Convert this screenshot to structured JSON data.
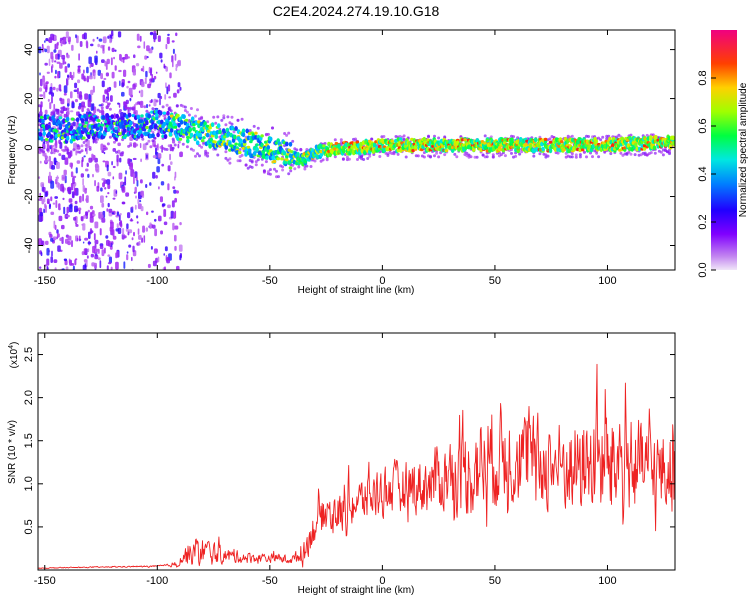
{
  "figure": {
    "title": "C2E4.2024.274.19.10.G18"
  },
  "chart_data": [
    {
      "type": "heatmap",
      "title": "C2E4.2024.274.19.10.G18",
      "xlabel": "Height of straight line (km)",
      "ylabel": "Frequency (Hz)",
      "xlim": [
        -153,
        130
      ],
      "ylim": [
        -50,
        48
      ],
      "xticks": [
        -150,
        -100,
        -50,
        0,
        50,
        100
      ],
      "yticks": [
        -40,
        -20,
        0,
        20,
        40
      ],
      "colorbar": {
        "label": "Normalized spectral amplitude",
        "range": [
          0,
          1
        ],
        "ticks": [
          0.0,
          0.2,
          0.4,
          0.6,
          0.8
        ],
        "tick_labels": [
          "0.0",
          "0.2",
          "0.4",
          "0.6",
          "0.8"
        ],
        "colormap": [
          "#e8d8f4",
          "#a020f0",
          "#4000ff",
          "#0060ff",
          "#00e0ff",
          "#00ff40",
          "#c0ff00",
          "#ffc000",
          "#ff3000",
          "#e00060"
        ]
      },
      "ridge": {
        "x": [
          -153,
          -140,
          -130,
          -120,
          -110,
          -100,
          -90,
          -80,
          -70,
          -60,
          -50,
          -42,
          -35,
          -30,
          -20,
          -10,
          0,
          20,
          40,
          60,
          80,
          100,
          120,
          130
        ],
        "frequency": [
          8,
          7,
          9,
          8,
          9,
          10,
          8,
          6,
          4,
          2,
          -1,
          -3,
          -5,
          -2,
          0,
          0,
          1,
          1,
          1,
          1,
          1,
          1,
          2,
          2
        ]
      },
      "noise_region": [
        -153,
        -95
      ],
      "grid": false
    },
    {
      "type": "line",
      "xlabel": "Height of straight line (km)",
      "ylabel": "SNR (10 * v/v)",
      "scale_label": "(x10",
      "scale_exponent": "4",
      "xlim": [
        -153,
        130
      ],
      "ylim": [
        0,
        2.75
      ],
      "xticks": [
        -150,
        -100,
        -50,
        0,
        50,
        100
      ],
      "yticks": [
        0.5,
        1.0,
        1.5,
        2.0,
        2.5
      ],
      "ytick_labels": [
        "0.5",
        "1.0",
        "1.5",
        "2.0",
        "2.5"
      ],
      "series_color": "#ee2222",
      "envelope": {
        "x": [
          -153,
          -130,
          -100,
          -92,
          -88,
          -80,
          -70,
          -60,
          -50,
          -40,
          -35,
          -30,
          -25,
          -20,
          -10,
          0,
          10,
          20,
          30,
          40,
          50,
          60,
          70,
          80,
          90,
          100,
          110,
          120,
          130
        ],
        "base": [
          0.02,
          0.03,
          0.04,
          0.05,
          0.12,
          0.15,
          0.13,
          0.12,
          0.12,
          0.1,
          0.15,
          0.45,
          0.6,
          0.55,
          0.7,
          0.8,
          0.85,
          0.85,
          0.95,
          0.95,
          1.1,
          1.1,
          1.05,
          1.0,
          1.0,
          1.0,
          1.0,
          0.95,
          0.95
        ],
        "amplitude": [
          0.01,
          0.01,
          0.02,
          0.05,
          0.25,
          0.4,
          0.2,
          0.15,
          0.12,
          0.12,
          0.3,
          0.5,
          0.5,
          0.55,
          0.6,
          0.7,
          0.7,
          0.8,
          1.0,
          1.3,
          1.4,
          1.2,
          1.2,
          1.2,
          1.3,
          1.5,
          1.3,
          1.2,
          1.1
        ]
      },
      "grid": false
    }
  ]
}
